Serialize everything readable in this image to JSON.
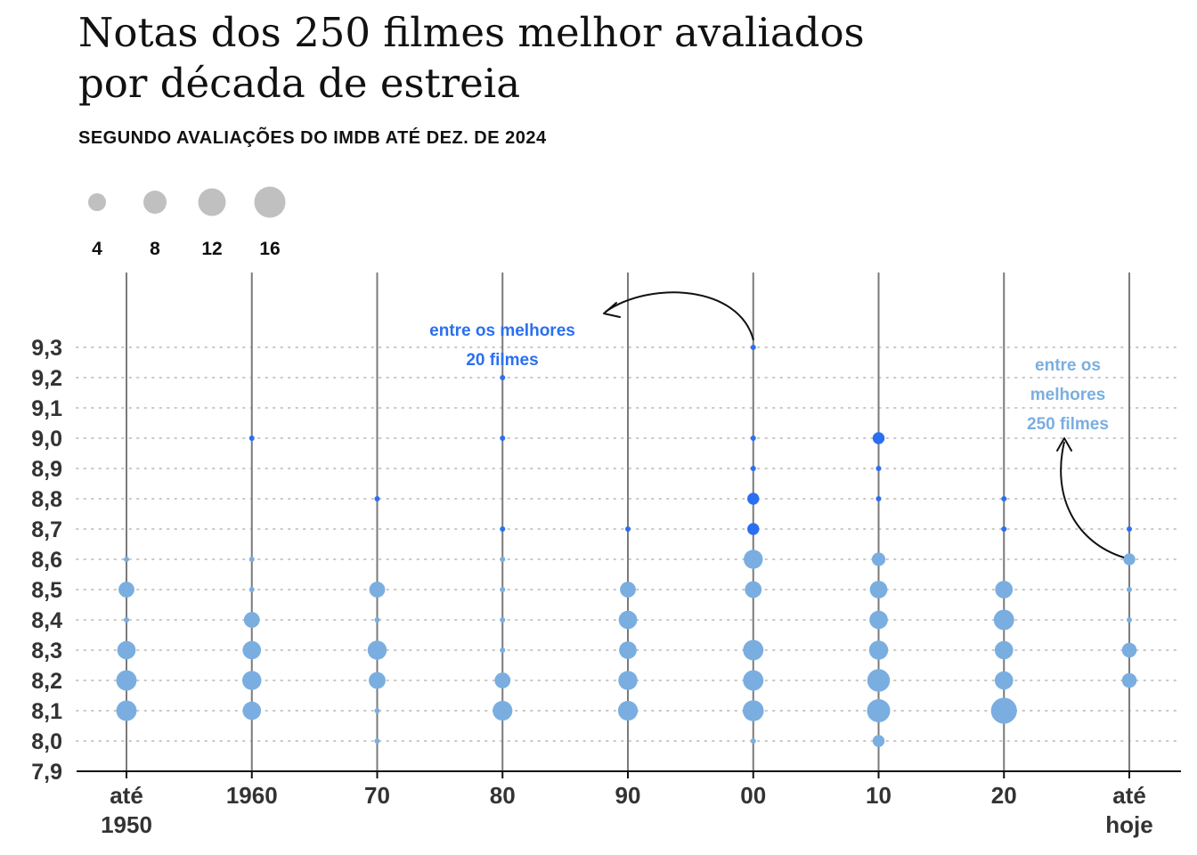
{
  "title": "Notas dos 250 filmes melhor avaliados por década de estreia",
  "subtitle": "SEGUNDO AVALIAÇÕES DO IMDB ATÉ DEZ. DE 2024",
  "colors": {
    "top20": "#2a6ff2",
    "top250": "#7aaee0",
    "legend": "#c0c0c0",
    "axis": "#333333",
    "grid": "#c8c8c8",
    "stem": "#7a7a7a"
  },
  "annotations": {
    "top20": [
      "entre os melhores",
      "20 filmes"
    ],
    "top250": [
      "entre os",
      "melhores",
      "250 filmes"
    ]
  },
  "chart_data": {
    "type": "scatter",
    "title": "Notas dos 250 filmes melhor avaliados por década de estreia",
    "subtitle": "SEGUNDO AVALIAÇÕES DO IMDB ATÉ DEZ. DE 2024",
    "size_legend": [
      4,
      8,
      12,
      16
    ],
    "y_ticks": [
      "9,3",
      "9,2",
      "9,1",
      "9,0",
      "8,9",
      "8,8",
      "8,7",
      "8,6",
      "8,5",
      "8,4",
      "8,3",
      "8,2",
      "8,1",
      "8,0",
      "7,9"
    ],
    "ylim": [
      7.9,
      9.3
    ],
    "grid": true,
    "categories": [
      [
        "até",
        "1950"
      ],
      [
        "1960"
      ],
      [
        "70"
      ],
      [
        "80"
      ],
      [
        "90"
      ],
      [
        "00"
      ],
      [
        "10"
      ],
      [
        "20"
      ],
      [
        "até",
        "hoje"
      ]
    ],
    "series": [
      {
        "name": "entre os melhores 20 filmes",
        "color": "#2a6ff2",
        "points": [
          {
            "x": 1,
            "y": 9.0,
            "count": 1
          },
          {
            "x": 2,
            "y": 8.8,
            "count": 1
          },
          {
            "x": 3,
            "y": 9.2,
            "count": 1
          },
          {
            "x": 3,
            "y": 9.0,
            "count": 1
          },
          {
            "x": 3,
            "y": 8.7,
            "count": 1
          },
          {
            "x": 4,
            "y": 8.7,
            "count": 1
          },
          {
            "x": 5,
            "y": 9.3,
            "count": 1
          },
          {
            "x": 5,
            "y": 9.0,
            "count": 1
          },
          {
            "x": 5,
            "y": 8.9,
            "count": 1
          },
          {
            "x": 5,
            "y": 8.8,
            "count": 2
          },
          {
            "x": 5,
            "y": 8.7,
            "count": 2
          },
          {
            "x": 6,
            "y": 9.0,
            "count": 2
          },
          {
            "x": 6,
            "y": 8.9,
            "count": 1
          },
          {
            "x": 6,
            "y": 8.8,
            "count": 1
          },
          {
            "x": 7,
            "y": 8.8,
            "count": 1
          },
          {
            "x": 7,
            "y": 8.7,
            "count": 1
          },
          {
            "x": 8,
            "y": 8.7,
            "count": 1
          }
        ]
      },
      {
        "name": "entre os melhores 250 filmes",
        "color": "#7aaee0",
        "points": [
          {
            "x": 0,
            "y": 8.6,
            "count": 1
          },
          {
            "x": 0,
            "y": 8.5,
            "count": 5
          },
          {
            "x": 0,
            "y": 8.4,
            "count": 1
          },
          {
            "x": 0,
            "y": 8.3,
            "count": 8
          },
          {
            "x": 0,
            "y": 8.2,
            "count": 11
          },
          {
            "x": 0,
            "y": 8.1,
            "count": 11
          },
          {
            "x": 1,
            "y": 8.6,
            "count": 1
          },
          {
            "x": 1,
            "y": 8.5,
            "count": 1
          },
          {
            "x": 1,
            "y": 8.4,
            "count": 5
          },
          {
            "x": 1,
            "y": 8.3,
            "count": 8
          },
          {
            "x": 1,
            "y": 8.2,
            "count": 9
          },
          {
            "x": 1,
            "y": 8.1,
            "count": 8
          },
          {
            "x": 2,
            "y": 8.5,
            "count": 5
          },
          {
            "x": 2,
            "y": 8.4,
            "count": 1
          },
          {
            "x": 2,
            "y": 8.3,
            "count": 9
          },
          {
            "x": 2,
            "y": 8.2,
            "count": 6
          },
          {
            "x": 2,
            "y": 8.1,
            "count": 1
          },
          {
            "x": 2,
            "y": 8.0,
            "count": 1
          },
          {
            "x": 3,
            "y": 8.6,
            "count": 1
          },
          {
            "x": 3,
            "y": 8.5,
            "count": 1
          },
          {
            "x": 3,
            "y": 8.4,
            "count": 1
          },
          {
            "x": 3,
            "y": 8.3,
            "count": 1
          },
          {
            "x": 3,
            "y": 8.2,
            "count": 5
          },
          {
            "x": 3,
            "y": 8.1,
            "count": 10
          },
          {
            "x": 4,
            "y": 8.5,
            "count": 5
          },
          {
            "x": 4,
            "y": 8.4,
            "count": 8
          },
          {
            "x": 4,
            "y": 8.3,
            "count": 7
          },
          {
            "x": 4,
            "y": 8.2,
            "count": 9
          },
          {
            "x": 4,
            "y": 8.1,
            "count": 10
          },
          {
            "x": 5,
            "y": 8.6,
            "count": 9
          },
          {
            "x": 5,
            "y": 8.5,
            "count": 6
          },
          {
            "x": 5,
            "y": 8.3,
            "count": 11
          },
          {
            "x": 5,
            "y": 8.2,
            "count": 11
          },
          {
            "x": 5,
            "y": 8.1,
            "count": 12
          },
          {
            "x": 5,
            "y": 8.0,
            "count": 1
          },
          {
            "x": 6,
            "y": 8.6,
            "count": 3
          },
          {
            "x": 6,
            "y": 8.5,
            "count": 7
          },
          {
            "x": 6,
            "y": 8.4,
            "count": 8
          },
          {
            "x": 6,
            "y": 8.3,
            "count": 9
          },
          {
            "x": 6,
            "y": 8.2,
            "count": 15
          },
          {
            "x": 6,
            "y": 8.1,
            "count": 16
          },
          {
            "x": 6,
            "y": 8.0,
            "count": 2
          },
          {
            "x": 7,
            "y": 8.5,
            "count": 7
          },
          {
            "x": 7,
            "y": 8.4,
            "count": 11
          },
          {
            "x": 7,
            "y": 8.3,
            "count": 8
          },
          {
            "x": 7,
            "y": 8.2,
            "count": 8
          },
          {
            "x": 7,
            "y": 8.1,
            "count": 22
          },
          {
            "x": 8,
            "y": 8.6,
            "count": 2
          },
          {
            "x": 8,
            "y": 8.5,
            "count": 1
          },
          {
            "x": 8,
            "y": 8.4,
            "count": 1
          },
          {
            "x": 8,
            "y": 8.3,
            "count": 4
          },
          {
            "x": 8,
            "y": 8.2,
            "count": 4
          }
        ]
      }
    ]
  }
}
